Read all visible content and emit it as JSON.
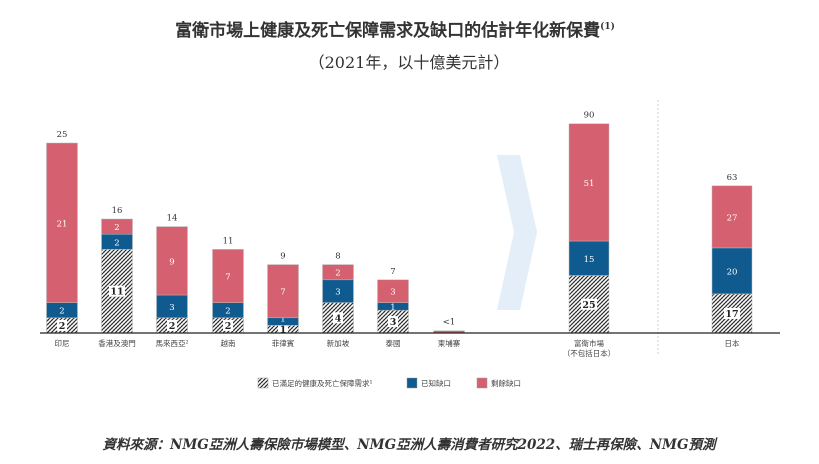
{
  "title": "富衛市場上健康及死亡保障需求及缺口的估計年化新保費",
  "title_note": "(1)",
  "subtitle": "（2021年，以十億美元計）",
  "source": "資料來源：NMG亞洲人壽保險市場模型、NMG亞洲人壽消費者研究2022、瑞士再保險、NMG預測",
  "colors": {
    "met": "hatched",
    "known_gap": "#0f5a8f",
    "remaining_gap": "#d5606f",
    "arrow": "#e3eef8"
  },
  "chart_data": {
    "type": "bar",
    "stacked": true,
    "legend_position": "bottom",
    "grid": false,
    "series": [
      {
        "name": "已滿足的健康及死亡保障需求¹",
        "key": "met"
      },
      {
        "name": "已知缺口",
        "key": "known_gap"
      },
      {
        "name": "剩餘缺口",
        "key": "remaining_gap"
      }
    ],
    "groups": [
      {
        "bars": [
          {
            "category": "印尼",
            "total": "25",
            "met": 2,
            "known_gap": 2,
            "remaining_gap": 21
          },
          {
            "category": "香港及澳門",
            "total": "16",
            "met": 11,
            "known_gap": 2,
            "remaining_gap": 2
          },
          {
            "category": "馬來西亞²",
            "total": "14",
            "met": 2,
            "known_gap": 3,
            "remaining_gap": 9
          },
          {
            "category": "越南",
            "total": "11",
            "met": 2,
            "known_gap": 2,
            "remaining_gap": 7
          },
          {
            "category": "菲律賓",
            "total": "9",
            "met": 1,
            "known_gap": 1,
            "remaining_gap": 7
          },
          {
            "category": "新加坡",
            "total": "8",
            "met": 4,
            "known_gap": 3,
            "remaining_gap": 2
          },
          {
            "category": "泰國",
            "total": "7",
            "met": 3,
            "known_gap": 1,
            "remaining_gap": 3
          },
          {
            "category": "柬埔寨",
            "total": "<1",
            "met": 0,
            "known_gap": 0,
            "remaining_gap": 0.3
          }
        ]
      },
      {
        "bars": [
          {
            "category": "富衛市場",
            "category_line2": "（不包括日本）",
            "total": "90",
            "met": 25,
            "known_gap": 15,
            "remaining_gap": 51
          },
          {
            "category": "日本",
            "total": "63",
            "met": 17,
            "known_gap": 20,
            "remaining_gap": 27
          }
        ]
      }
    ]
  }
}
